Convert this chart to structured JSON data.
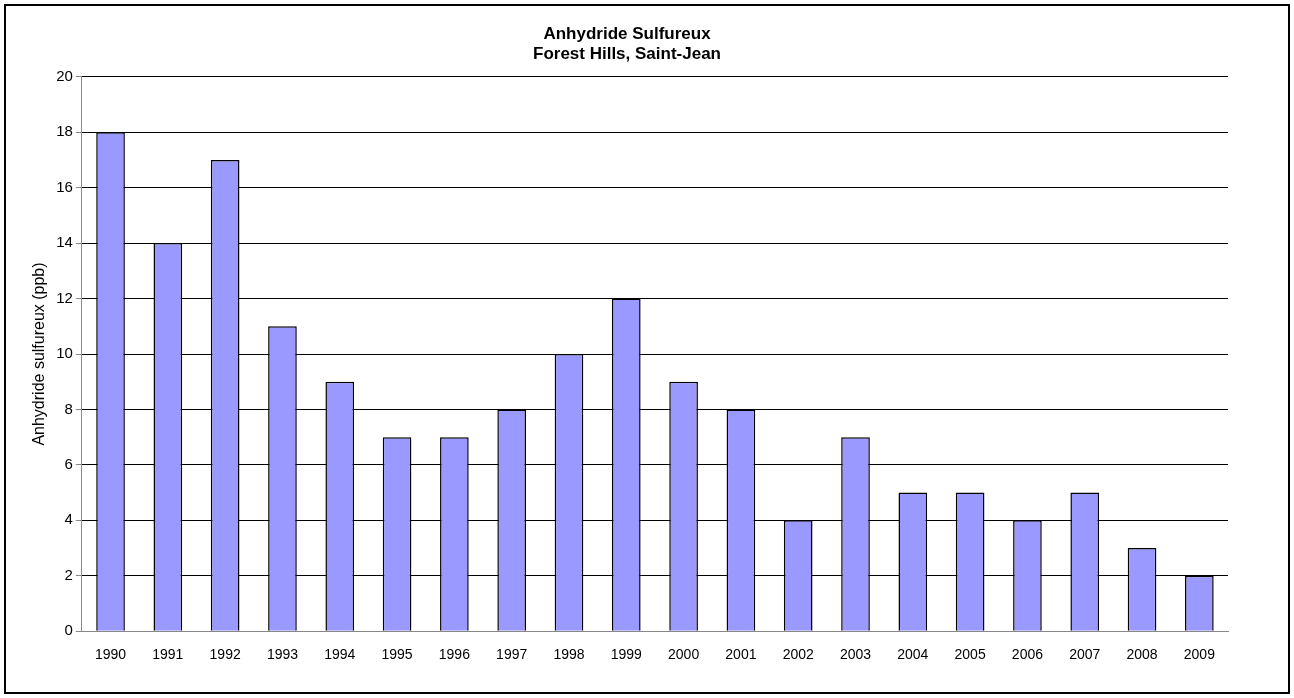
{
  "chart_data": {
    "type": "bar",
    "title": "Anhydride Sulfureux\nForest Hills, Saint-Jean",
    "ylabel": "Anhydride sulfureux (ppb)",
    "categories": [
      "1990",
      "1991",
      "1992",
      "1993",
      "1994",
      "1995",
      "1996",
      "1997",
      "1998",
      "1999",
      "2000",
      "2001",
      "2002",
      "2003",
      "2004",
      "2005",
      "2006",
      "2007",
      "2008",
      "2009"
    ],
    "values": [
      18,
      14,
      17,
      11,
      9,
      7,
      7,
      8,
      10,
      12,
      9,
      8,
      4,
      7,
      5,
      5,
      4,
      5,
      3,
      2
    ],
    "color": "#9999ff",
    "ylim": [
      0,
      20
    ],
    "yticks": [
      0,
      2,
      4,
      6,
      8,
      10,
      12,
      14,
      16,
      18,
      20
    ],
    "grid": "y",
    "legend": false
  }
}
